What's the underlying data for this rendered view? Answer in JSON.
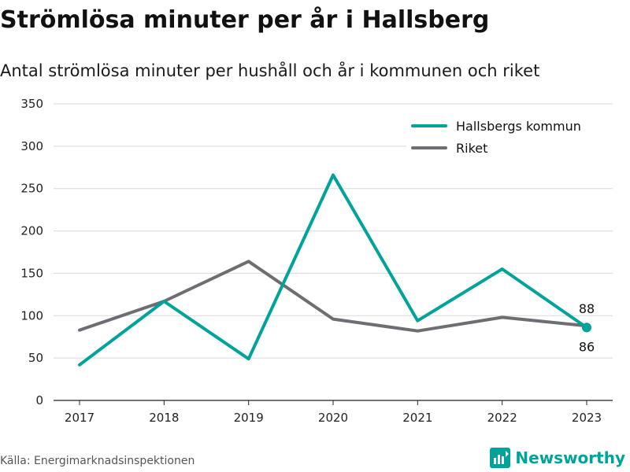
{
  "title": "Strömlösa minuter per år i Hallsberg",
  "subtitle": "Antal strömlösa minuter per hushåll och år i kommunen och riket",
  "source": "Källa: Energimarknadsinspektionen",
  "brand": {
    "name": "Newsworthy",
    "icon": "newsworthy-logo-icon",
    "color": "#00a39a"
  },
  "chart_data": {
    "type": "line",
    "title": "Strömlösa minuter per år i Hallsberg",
    "subtitle": "Antal strömlösa minuter per hushåll och år i kommunen och riket",
    "xlabel": "",
    "ylabel": "",
    "x": [
      "2017",
      "2018",
      "2019",
      "2020",
      "2021",
      "2022",
      "2023"
    ],
    "ylim": [
      0,
      350
    ],
    "yticks": [
      0,
      50,
      100,
      150,
      200,
      250,
      300,
      350
    ],
    "grid": true,
    "legend": "top-right",
    "series": [
      {
        "name": "Hallsbergs kommun",
        "color": "#00a39a",
        "values": [
          42,
          117,
          49,
          266,
          94,
          155,
          86
        ]
      },
      {
        "name": "Riket",
        "color": "#6e6d73",
        "values": [
          83,
          117,
          164,
          96,
          82,
          98,
          88
        ]
      }
    ],
    "annotations": [
      {
        "x": "2023",
        "text": "88",
        "series": "Riket"
      },
      {
        "x": "2023",
        "text": "86",
        "series": "Hallsbergs kommun"
      }
    ]
  }
}
